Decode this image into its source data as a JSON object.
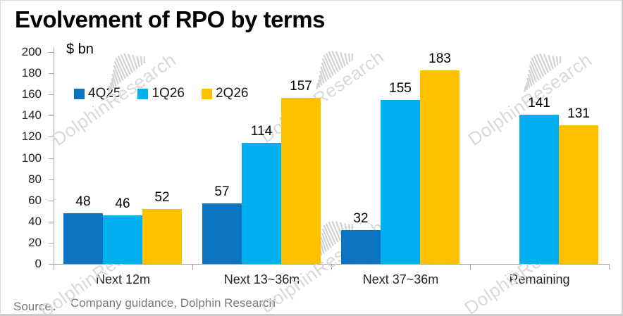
{
  "title": "Evolvement of RPO by terms",
  "unit_label": "$ bn",
  "source": {
    "label": "Source：",
    "text": "Company guidance, Dolphin Research"
  },
  "watermark": {
    "text": "DolphinResearch"
  },
  "chart_data": {
    "type": "bar",
    "title": "Evolvement of RPO by terms",
    "ylabel": "$ bn",
    "xlabel": "",
    "categories": [
      "Next 12m",
      "Next 13~36m",
      "Next 37~36m",
      "Remaining"
    ],
    "series": [
      {
        "name": "4Q25",
        "color": "#0a73c2",
        "values": [
          48,
          57,
          32,
          null
        ]
      },
      {
        "name": "1Q26",
        "color": "#00b0f0",
        "values": [
          46,
          114,
          155,
          141
        ]
      },
      {
        "name": "2Q26",
        "color": "#ffc000",
        "values": [
          52,
          157,
          183,
          131
        ]
      }
    ],
    "ylim": [
      0,
      200
    ],
    "ytick_step": 20,
    "grid": false,
    "legend_position": "top-left",
    "axis_color": "#a6a6a6"
  }
}
